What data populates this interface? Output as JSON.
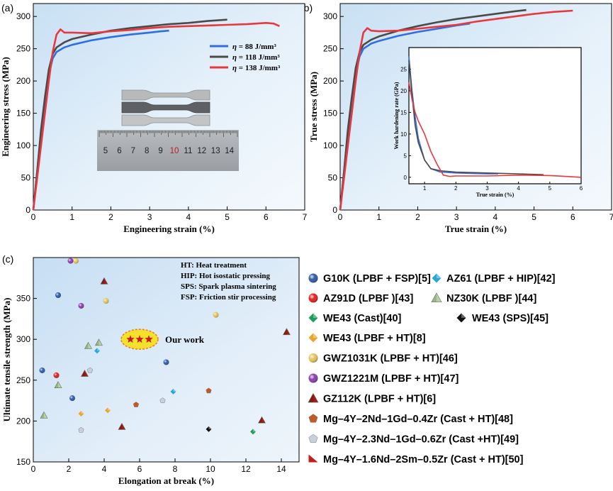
{
  "chart_data": [
    {
      "panel": "(a)",
      "type": "line",
      "xlabel": "Engineering strain (%)",
      "ylabel": "Engineering stress (MPa)",
      "xlim": [
        0,
        7
      ],
      "ylim": [
        0,
        320
      ],
      "xticks": [
        0,
        1,
        2,
        3,
        4,
        5,
        6,
        7
      ],
      "yticks": [
        0,
        50,
        100,
        150,
        200,
        250,
        300
      ],
      "legend": {
        "prefix": "η",
        "entries": [
          "=   88 J/mm³",
          "= 118 J/mm³",
          "= 138 J/mm³"
        ]
      },
      "inset_image": {
        "description": "tensile specimens over ruler",
        "ruler_numbers": [
          "5",
          "6",
          "7",
          "8",
          "9",
          "10",
          "11",
          "12",
          "13",
          "14"
        ]
      },
      "series": [
        {
          "name": "η = 88 J/mm³",
          "color": "#2f6fe0",
          "x": [
            0,
            0.1,
            0.2,
            0.3,
            0.4,
            0.5,
            0.6,
            0.8,
            1.0,
            1.5,
            2.0,
            2.5,
            3.0,
            3.3,
            3.5
          ],
          "y": [
            0,
            60,
            120,
            170,
            210,
            235,
            245,
            252,
            256,
            263,
            268,
            272,
            275,
            277,
            278
          ]
        },
        {
          "name": "η = 118 J/mm³",
          "color": "#4a4a4a",
          "x": [
            0,
            0.1,
            0.2,
            0.3,
            0.4,
            0.5,
            0.6,
            0.8,
            1.0,
            1.5,
            2.0,
            2.5,
            3.0,
            3.5,
            4.0,
            4.5,
            5.0
          ],
          "y": [
            0,
            60,
            125,
            175,
            218,
            242,
            252,
            260,
            265,
            272,
            278,
            282,
            285,
            288,
            290,
            293,
            295
          ]
        },
        {
          "name": "η = 138 J/mm³",
          "color": "#e8383d",
          "x": [
            0,
            0.1,
            0.2,
            0.3,
            0.4,
            0.5,
            0.6,
            0.7,
            0.8,
            1.0,
            1.5,
            2.0,
            2.5,
            3.0,
            3.5,
            4.0,
            4.5,
            5.0,
            5.5,
            6.0,
            6.2,
            6.35
          ],
          "y": [
            0,
            50,
            100,
            150,
            200,
            245,
            272,
            280,
            275,
            275,
            274,
            277,
            279,
            282,
            284,
            285,
            286,
            287,
            288,
            290,
            289,
            285
          ]
        }
      ]
    },
    {
      "panel": "(b)",
      "type": "line",
      "xlabel": "True strain (%)",
      "ylabel": "True stress (MPa)",
      "xlim": [
        0,
        7
      ],
      "ylim": [
        0,
        320
      ],
      "xticks": [
        0,
        1,
        2,
        3,
        4,
        5,
        6,
        7
      ],
      "yticks": [
        0,
        50,
        100,
        150,
        200,
        250,
        300
      ],
      "series": [
        {
          "name": "η = 88 J/mm³",
          "color": "#2f6fe0",
          "x": [
            0,
            0.1,
            0.2,
            0.3,
            0.4,
            0.5,
            0.6,
            0.8,
            1.0,
            1.5,
            2.0,
            2.5,
            3.0,
            3.35
          ],
          "y": [
            0,
            60,
            120,
            170,
            210,
            238,
            250,
            258,
            262,
            270,
            276,
            281,
            286,
            289
          ]
        },
        {
          "name": "η = 118 J/mm³",
          "color": "#4a4a4a",
          "x": [
            0,
            0.1,
            0.2,
            0.3,
            0.4,
            0.5,
            0.6,
            0.8,
            1.0,
            1.5,
            2.0,
            2.5,
            3.0,
            3.5,
            4.0,
            4.5,
            4.8
          ],
          "y": [
            0,
            60,
            125,
            175,
            220,
            245,
            256,
            264,
            269,
            278,
            285,
            291,
            296,
            300,
            304,
            308,
            310
          ]
        },
        {
          "name": "η = 138 J/mm³",
          "color": "#e8383d",
          "x": [
            0,
            0.1,
            0.2,
            0.3,
            0.4,
            0.5,
            0.6,
            0.7,
            0.8,
            1.0,
            1.5,
            2.0,
            2.5,
            3.0,
            3.5,
            4.0,
            4.5,
            5.0,
            5.5,
            6.0
          ],
          "y": [
            0,
            50,
            100,
            150,
            200,
            245,
            275,
            282,
            278,
            277,
            278,
            281,
            284,
            287,
            292,
            296,
            300,
            304,
            307,
            309
          ]
        }
      ],
      "inset": {
        "type": "line",
        "xlabel": "True strain (%)",
        "ylabel": "Work hardening rate (GPa)",
        "xlim": [
          0.5,
          6
        ],
        "ylim": [
          -1.5,
          30
        ],
        "xticks": [
          1,
          2,
          3,
          4,
          5,
          6
        ],
        "yticks": [
          0,
          5,
          10,
          15,
          20,
          25
        ],
        "series": [
          {
            "name": "η = 88 J/mm³",
            "color": "#2f6fe0",
            "x": [
              0.5,
              0.6,
              0.7,
              0.8,
              1.0,
              1.2,
              1.5,
              2.0,
              2.5,
              3.0,
              3.35
            ],
            "y": [
              28,
              20,
              14,
              9,
              4,
              2,
              1.2,
              1.0,
              0.9,
              0.8,
              0.8
            ]
          },
          {
            "name": "η = 118 J/mm³",
            "color": "#4a4a4a",
            "x": [
              0.5,
              0.6,
              0.7,
              0.8,
              1.0,
              1.2,
              1.5,
              2.0,
              3.0,
              4.0,
              4.8
            ],
            "y": [
              27,
              19,
              12,
              8,
              4,
              2,
              1.5,
              1.2,
              1.0,
              0.8,
              0.6
            ]
          },
          {
            "name": "η = 138 J/mm³",
            "color": "#e8383d",
            "x": [
              0.5,
              0.6,
              0.7,
              0.8,
              1.0,
              1.2,
              1.4,
              1.6,
              1.8,
              2.0,
              3.0,
              4.0,
              5.0,
              5.5,
              6.0
            ],
            "y": [
              22,
              18,
              15,
              13,
              10,
              6,
              3,
              0.5,
              0.2,
              0.3,
              0.3,
              0.5,
              0.4,
              0.2,
              0.0
            ]
          }
        ]
      }
    },
    {
      "panel": "(c)",
      "type": "scatter",
      "xlabel": "Elongation at break (%)",
      "ylabel": "Ultimate tensile strength (MPa)",
      "xlim": [
        0,
        15
      ],
      "ylim": [
        150,
        400
      ],
      "xticks": [
        0,
        2,
        4,
        6,
        8,
        10,
        12,
        14
      ],
      "yticks": [
        150,
        200,
        250,
        300,
        350
      ],
      "notes": [
        "HT: Heat treatment",
        "HIP: Hot isostatic pressing",
        "SPS: Spark plasma sintering",
        "FSP: Friction stir processing"
      ],
      "highlight": {
        "label": "Our work",
        "x": 6.0,
        "y": 300
      },
      "series": [
        {
          "name": "G10K (LPBF + FSP)[5]",
          "marker": "sphere",
          "color": "#2b5aa8",
          "points": [
            [
              1.4,
              354
            ],
            [
              0.5,
              262
            ],
            [
              2.2,
              228
            ],
            [
              7.5,
              272
            ]
          ]
        },
        {
          "name": "AZ61 (LPBF + HIP)[42]",
          "marker": "diamond",
          "color": "#2aa6d6",
          "points": [
            [
              3.6,
              286
            ],
            [
              7.9,
              236
            ]
          ]
        },
        {
          "name": "AZ91D (LPBF )[43]",
          "marker": "sphere",
          "color": "#e01f1f",
          "points": [
            [
              1.3,
              256
            ]
          ]
        },
        {
          "name": "NZ30K (LPBF )[44]",
          "marker": "triangle",
          "color": "#b8d2a8",
          "points": [
            [
              0.6,
              207
            ],
            [
              1.4,
              244
            ],
            [
              3.1,
              292
            ],
            [
              3.7,
              296
            ]
          ]
        },
        {
          "name": "WE43 (Cast)[40]",
          "marker": "diamond",
          "color": "#1e9e5a",
          "points": [
            [
              12.4,
              187
            ]
          ]
        },
        {
          "name": "WE43 (SPS)[45]",
          "marker": "diamond",
          "color": "#111111",
          "points": [
            [
              9.9,
              190
            ]
          ]
        },
        {
          "name": "WE43 (LPBF + HT)[8]",
          "marker": "diamond",
          "color": "#e8a62a",
          "points": [
            [
              2.7,
              209
            ],
            [
              4.2,
              213
            ]
          ]
        },
        {
          "name": "GWZ1031K (LPBF + HT)[46]",
          "marker": "sphere",
          "color": "#e6c45a",
          "points": [
            [
              2.4,
              396
            ],
            [
              4.1,
              347
            ],
            [
              10.3,
              330
            ]
          ]
        },
        {
          "name": "GWZ1221M (LPBF + HT)[47]",
          "marker": "sphere",
          "color": "#8a3bb0",
          "points": [
            [
              2.1,
              396
            ],
            [
              2.7,
              341
            ]
          ]
        },
        {
          "name": "GZ112K (LPBF + HT)[6]",
          "marker": "triangle",
          "color": "#a01c1c",
          "points": [
            [
              4.0,
              371
            ],
            [
              14.3,
              309
            ],
            [
              2.9,
              258
            ],
            [
              5.0,
              193
            ],
            [
              12.9,
              201
            ]
          ]
        },
        {
          "name": "Mg–4Y–2Nd–1Gd–0.4Zr (Cast + HT)[48]",
          "marker": "pentagon",
          "color": "#c05a26",
          "points": [
            [
              5.8,
              220
            ],
            [
              9.9,
              237
            ]
          ]
        },
        {
          "name": "Mg–4Y–2.3Nd–1Gd–0.6Zr (Cast +HT)[49]",
          "marker": "pentagon",
          "color": "#c9d0dc",
          "points": [
            [
              2.7,
              189
            ],
            [
              3.2,
              262
            ],
            [
              7.3,
              225
            ]
          ]
        },
        {
          "name": "Mg–4Y–1.6Nd–2Sm–0.5Zr (Cast + HT)[50]",
          "marker": "flag",
          "color": "#c41c1c",
          "points": []
        }
      ]
    }
  ]
}
